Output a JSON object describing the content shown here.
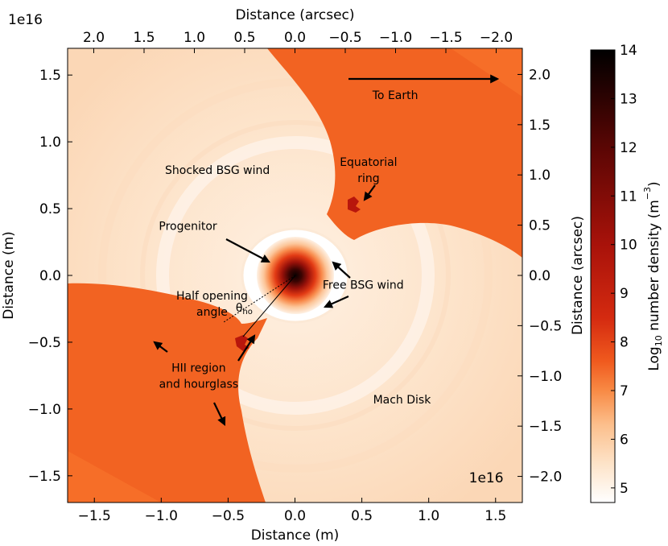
{
  "colors": {
    "fill_low": "#fde3c8",
    "fill_high": "#f26322",
    "ring": "#fff6ec",
    "core": "#140000",
    "mid": "#c41a10"
  },
  "chart_data": {
    "type": "heatmap",
    "quantity": "Log10 number density (m^-3)",
    "bottom_axis": {
      "label": "Distance (m)",
      "multiplier": "1e16",
      "range": [
        -1.7,
        1.7
      ],
      "ticks": [
        -1.5,
        -1.0,
        -0.5,
        0.0,
        0.5,
        1.0,
        1.5
      ],
      "tick_labels": [
        "−1.5",
        "−1.0",
        "−0.5",
        "0.0",
        "0.5",
        "1.0",
        "1.5"
      ]
    },
    "left_axis": {
      "label": "Distance (m)",
      "multiplier": "1e16",
      "range": [
        -1.7,
        1.7
      ],
      "ticks": [
        -1.5,
        -1.0,
        -0.5,
        0.0,
        0.5,
        1.0,
        1.5
      ],
      "tick_labels": [
        "−1.5",
        "−1.0",
        "−0.5",
        "0.0",
        "0.5",
        "1.0",
        "1.5"
      ]
    },
    "top_axis": {
      "label": "Distance (arcsec)",
      "range": [
        2.26,
        -2.26
      ],
      "ticks": [
        2.0,
        1.5,
        1.0,
        0.5,
        0.0,
        -0.5,
        -1.0,
        -1.5,
        -2.0
      ],
      "tick_labels": [
        "2.0",
        "1.5",
        "1.0",
        "0.5",
        "0.0",
        "−0.5",
        "−1.0",
        "−1.5",
        "−2.0"
      ]
    },
    "right_axis": {
      "label": "Distance (arcsec)",
      "range": [
        -2.26,
        2.26
      ],
      "ticks": [
        2.0,
        1.5,
        1.0,
        0.5,
        0.0,
        -0.5,
        -1.0,
        -1.5,
        -2.0
      ],
      "tick_labels": [
        "2.0",
        "1.5",
        "1.0",
        "0.5",
        "0.0",
        "−0.5",
        "−1.0",
        "−1.5",
        "−2.0"
      ]
    },
    "colorbar": {
      "label_prefix": "Log",
      "label_sub": "10",
      "label_middle": " number density (m",
      "label_sup": "−3",
      "label_suffix": ")",
      "range": [
        4.7,
        14
      ],
      "ticks": [
        5,
        6,
        7,
        8,
        9,
        10,
        11,
        12,
        13,
        14
      ],
      "tick_labels": [
        "5",
        "6",
        "7",
        "8",
        "9",
        "10",
        "11",
        "12",
        "13",
        "14"
      ],
      "stops": [
        {
          "value": 4.7,
          "color": "#ffffff"
        },
        {
          "value": 5.5,
          "color": "#fde3c8"
        },
        {
          "value": 6.3,
          "color": "#fcbf8c"
        },
        {
          "value": 7.0,
          "color": "#f88a45"
        },
        {
          "value": 7.6,
          "color": "#f05a1e"
        },
        {
          "value": 8.5,
          "color": "#d42a10"
        },
        {
          "value": 10.0,
          "color": "#a8120a"
        },
        {
          "value": 12.0,
          "color": "#5a0604"
        },
        {
          "value": 14.0,
          "color": "#000000"
        }
      ]
    },
    "annotations": [
      {
        "id": "to-earth",
        "text": "To Earth",
        "x": 0.75,
        "y": 1.32
      },
      {
        "id": "equatorial-ring",
        "lines": [
          "Equatorial",
          "ring"
        ],
        "x": 0.55,
        "y": 0.82
      },
      {
        "id": "shocked-bsg-wind",
        "text": "Shocked BSG wind",
        "x": -0.58,
        "y": 0.76
      },
      {
        "id": "progenitor",
        "text": "Progenitor",
        "x": -0.8,
        "y": 0.34
      },
      {
        "id": "free-bsg-wind",
        "text": "Free BSG wind",
        "x": 0.51,
        "y": -0.1
      },
      {
        "id": "half-opening-angle",
        "lines": [
          "Half opening",
          "angle"
        ],
        "x": -0.62,
        "y": -0.18
      },
      {
        "id": "theta-ho",
        "symbol": "θ",
        "sub": "ho",
        "x": -0.38,
        "y": -0.27
      },
      {
        "id": "hii-region",
        "lines": [
          "HII region",
          "and hourglass"
        ],
        "x": -0.72,
        "y": -0.72
      },
      {
        "id": "mach-disk",
        "text": "Mach Disk",
        "x": 0.8,
        "y": -0.96
      },
      {
        "id": "corner-multiplier",
        "text": "1e16",
        "x": 1.43,
        "y": -1.55
      }
    ]
  }
}
